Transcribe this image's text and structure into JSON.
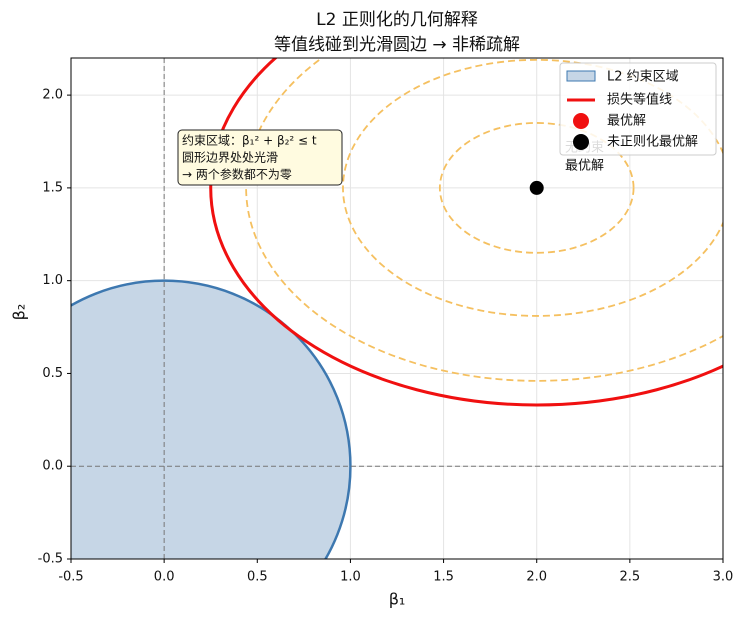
{
  "chart_data": {
    "type": "contour",
    "title": [
      "L2 正则化的几何解释",
      "等值线碰到光滑圆边 → 非稀疏解"
    ],
    "xlabel": "β₁",
    "ylabel": "β₂",
    "xlim": [
      -0.5,
      3.0
    ],
    "ylim": [
      -0.5,
      2.2
    ],
    "xticks": [
      -0.5,
      {
        "value": 0,
        "label": "0.0"
      },
      0.5,
      {
        "value": 1,
        "label": "1.0"
      },
      1.5,
      {
        "value": 2,
        "label": "2.0"
      },
      2.5,
      {
        "value": 3,
        "label": "3.0"
      }
    ],
    "yticks": [
      -0.5,
      {
        "value": 0,
        "label": "0.0"
      },
      0.5,
      {
        "value": 1,
        "label": "1.0"
      },
      1.5,
      {
        "value": 2,
        "label": "2.0"
      }
    ],
    "grid": true,
    "constraint": {
      "name": "L2 约束区域",
      "center": [
        0,
        0
      ],
      "radius": 1,
      "fill": "#c6d6e6",
      "edge": "#3d78b0"
    },
    "loss_contours": {
      "name": "损失等值线",
      "color": "#f01010",
      "center": [
        2,
        1.5
      ],
      "semi_axes": [
        1.75,
        1.17
      ]
    },
    "dashed_contours": {
      "color": "#f5c060",
      "center": [
        2,
        1.5
      ],
      "semi_axes": [
        [
          0.52,
          0.35
        ],
        [
          1.04,
          0.69
        ],
        [
          1.56,
          1.04
        ]
      ]
    },
    "optimum": {
      "name": "最优解",
      "color": "#f01010"
    },
    "unconstrained": {
      "name": "未正则化最优解",
      "color": "#000000",
      "x": 2,
      "y": 1.5
    },
    "annotation_box": [
      "约束区域：β₁² + β₂² ≤ t",
      "圆形边界处处光滑",
      "→ 两个参数都不为零"
    ],
    "annotation_point": [
      "无约束",
      "最优解"
    ]
  }
}
